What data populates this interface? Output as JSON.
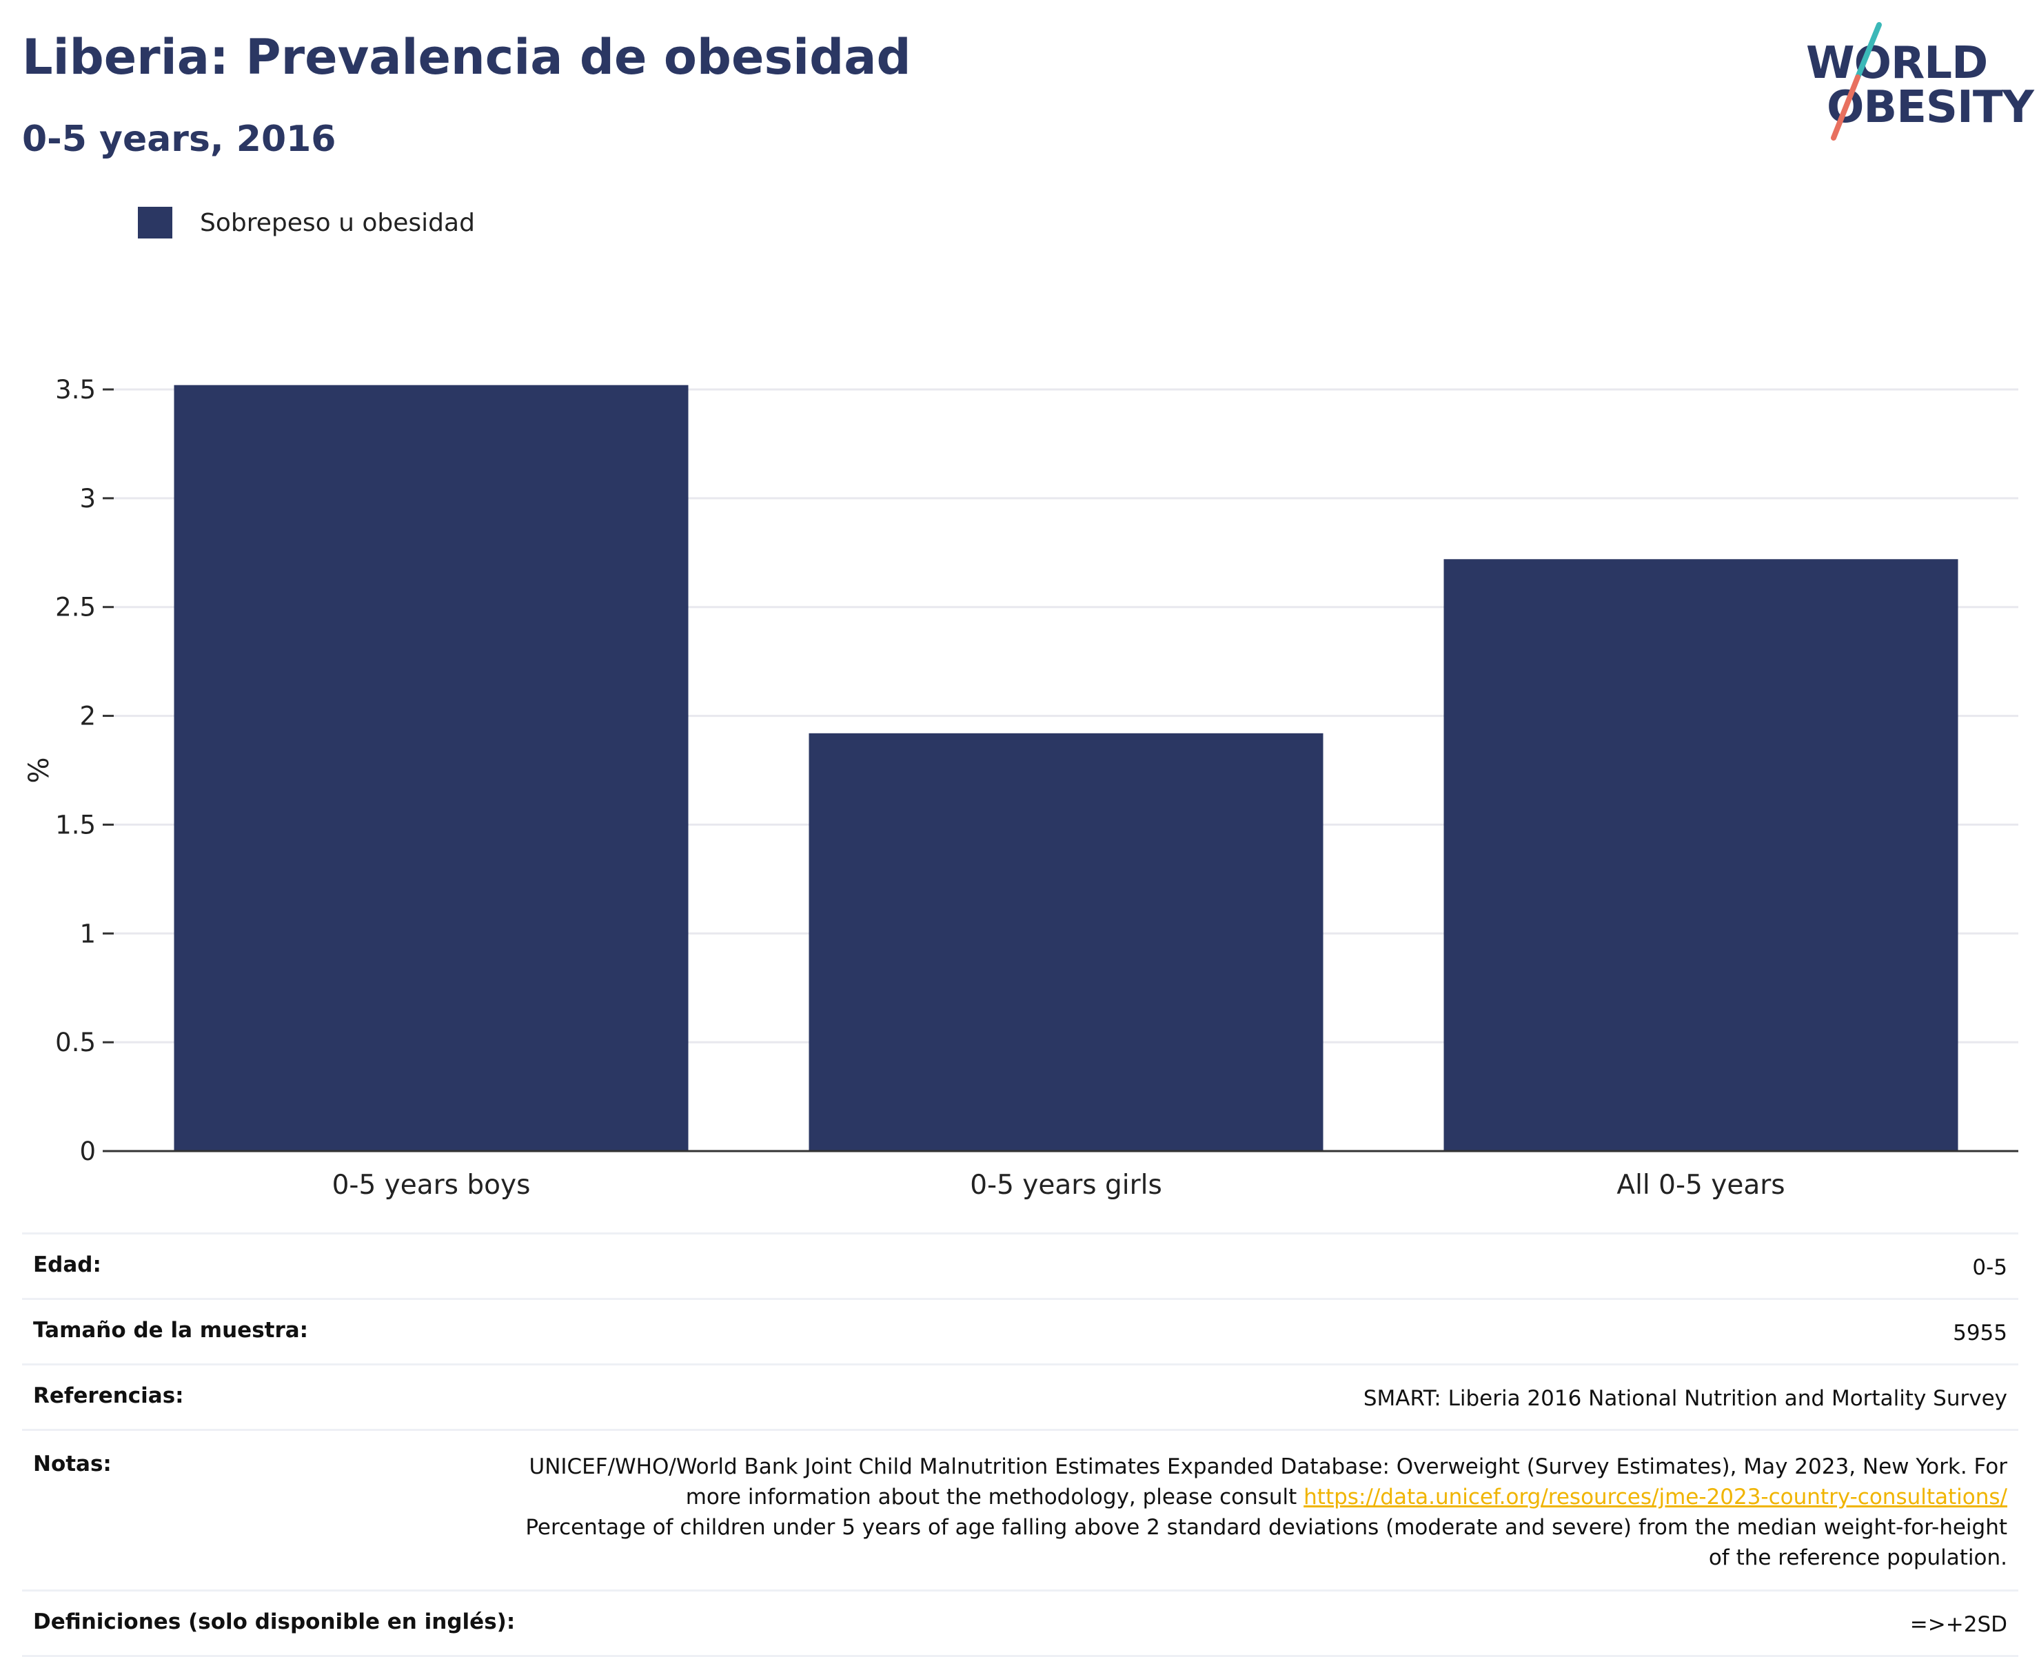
{
  "header": {
    "title": "Liberia: Prevalencia de obesidad",
    "subtitle": "0-5 years, 2016"
  },
  "logo": {
    "line1": "WORLD",
    "line2": "OBESITY",
    "colors": {
      "text": "#2b3763",
      "slash_teal": "#3bb8b8",
      "slash_coral": "#e8705f"
    }
  },
  "legend": {
    "label": "Sobrepeso u obesidad",
    "color": "#2b3763"
  },
  "chart_data": {
    "type": "bar",
    "categories": [
      "0-5 years boys",
      "0-5 years girls",
      "All 0-5 years"
    ],
    "series": [
      {
        "name": "Sobrepeso u obesidad",
        "values": [
          3.52,
          1.92,
          2.72
        ],
        "color": "#2b3763"
      }
    ],
    "ylabel": "%",
    "xlabel": "",
    "ylim": [
      0,
      3.5
    ],
    "yticks": [
      0,
      0.5,
      1,
      1.5,
      2,
      2.5,
      3,
      3.5
    ],
    "ytick_labels": [
      "0",
      "0.5",
      "1",
      "1.5",
      "2",
      "2.5",
      "3",
      "3.5"
    ],
    "grid": true,
    "legend_position": "top-left"
  },
  "info": {
    "age_label": "Edad:",
    "age_value": "0-5",
    "sample_label": "Tamaño de la muestra:",
    "sample_value": "5955",
    "refs_label": "Referencias:",
    "refs_value": "SMART: Liberia 2016 National Nutrition and Mortality Survey",
    "notes_label": "Notas:",
    "notes_text_1": "UNICEF/WHO/World Bank Joint Child Malnutrition Estimates Expanded Database: Overweight (Survey Estimates), May 2023, New York. For more information about the methodology, please consult ",
    "notes_link": "https://data.unicef.org/resources/jme-2023-country-consultations/",
    "notes_text_2": "Percentage of children under 5 years of age falling above 2 standard deviations (moderate and severe) from the median weight-for-height of the reference population.",
    "defs_label": "Definiciones (solo disponible en inglés):",
    "defs_value": "=>+2SD"
  }
}
